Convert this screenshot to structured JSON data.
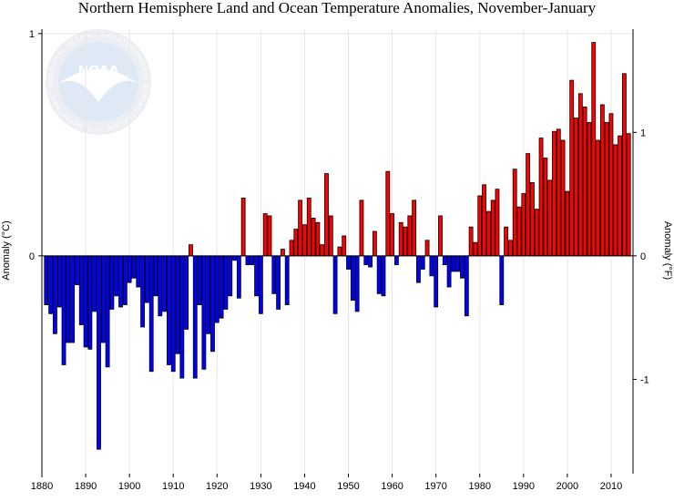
{
  "chart_data": {
    "type": "bar",
    "title": "Northern Hemisphere Land and Ocean Temperature Anomalies, November-January",
    "ylabel_left": "Anomaly (°C)",
    "ylabel_right": "Anomaly (°F)",
    "xlabel": "",
    "xlim": [
      1880,
      2015
    ],
    "ylim_c": [
      -0.98,
      1.02
    ],
    "ylim_f": [
      -1.764,
      1.836
    ],
    "x_ticks": [
      1880,
      1890,
      1900,
      1910,
      1920,
      1930,
      1940,
      1950,
      1960,
      1970,
      1980,
      1990,
      2000,
      2010
    ],
    "y_ticks_c": [
      1,
      0
    ],
    "y_ticks_f": [
      1,
      0,
      -1
    ],
    "grid": true,
    "positive_color": "#ff0000",
    "negative_color": "#0000ff",
    "x": [
      1881,
      1882,
      1883,
      1884,
      1885,
      1886,
      1887,
      1888,
      1889,
      1890,
      1891,
      1892,
      1893,
      1894,
      1895,
      1896,
      1897,
      1898,
      1899,
      1900,
      1901,
      1902,
      1903,
      1904,
      1905,
      1906,
      1907,
      1908,
      1909,
      1910,
      1911,
      1912,
      1913,
      1914,
      1915,
      1916,
      1917,
      1918,
      1919,
      1920,
      1921,
      1922,
      1923,
      1924,
      1925,
      1926,
      1927,
      1928,
      1929,
      1930,
      1931,
      1932,
      1933,
      1934,
      1935,
      1936,
      1937,
      1938,
      1939,
      1940,
      1941,
      1942,
      1943,
      1944,
      1945,
      1946,
      1947,
      1948,
      1949,
      1950,
      1951,
      1952,
      1953,
      1954,
      1955,
      1956,
      1957,
      1958,
      1959,
      1960,
      1961,
      1962,
      1963,
      1964,
      1965,
      1966,
      1967,
      1968,
      1969,
      1970,
      1971,
      1972,
      1973,
      1974,
      1975,
      1976,
      1977,
      1978,
      1979,
      1980,
      1981,
      1982,
      1983,
      1984,
      1985,
      1986,
      1987,
      1988,
      1989,
      1990,
      1991,
      1992,
      1993,
      1994,
      1995,
      1996,
      1997,
      1998,
      1999,
      2000,
      2001,
      2002,
      2003,
      2004,
      2005,
      2006,
      2007,
      2008,
      2009,
      2010,
      2011,
      2012,
      2013,
      2014
    ],
    "values": [
      -0.22,
      -0.26,
      -0.35,
      -0.23,
      -0.49,
      -0.39,
      -0.39,
      -0.13,
      -0.31,
      -0.41,
      -0.42,
      -0.25,
      -0.87,
      -0.39,
      -0.5,
      -0.24,
      -0.18,
      -0.23,
      -0.22,
      -0.12,
      -0.1,
      -0.14,
      -0.32,
      -0.21,
      -0.52,
      -0.18,
      -0.27,
      -0.25,
      -0.49,
      -0.52,
      -0.44,
      -0.55,
      -0.33,
      0.05,
      -0.55,
      -0.22,
      -0.51,
      -0.35,
      -0.43,
      -0.3,
      -0.28,
      -0.24,
      -0.18,
      -0.02,
      -0.19,
      0.26,
      -0.04,
      -0.04,
      -0.18,
      -0.26,
      0.19,
      0.18,
      -0.17,
      -0.24,
      0.03,
      -0.22,
      0.07,
      0.12,
      0.25,
      0.14,
      0.26,
      0.17,
      0.15,
      0.05,
      0.37,
      0.18,
      -0.26,
      0.04,
      0.09,
      -0.06,
      -0.2,
      -0.25,
      0.25,
      -0.04,
      -0.05,
      0.11,
      -0.17,
      -0.18,
      0.38,
      0.19,
      -0.04,
      0.15,
      0.13,
      0.18,
      0.25,
      -0.12,
      -0.06,
      0.07,
      -0.09,
      -0.23,
      0.18,
      -0.04,
      -0.14,
      -0.07,
      -0.07,
      -0.1,
      -0.27,
      0.13,
      0.06,
      0.27,
      0.32,
      0.2,
      0.25,
      0.3,
      -0.22,
      0.13,
      0.07,
      0.39,
      0.22,
      0.28,
      0.46,
      0.33,
      0.21,
      0.53,
      0.44,
      0.34,
      0.56,
      0.57,
      0.52,
      0.29,
      0.79,
      0.62,
      0.73,
      0.67,
      0.6,
      0.96,
      0.52,
      0.68,
      0.6,
      0.64,
      0.5,
      0.54,
      0.82,
      0.55
    ]
  },
  "logo": {
    "word": "NOAA",
    "ring_text": "NATIONAL OCEANIC AND ATMOSPHERIC ADMINISTRATION · U.S. DEPARTMENT OF COMMERCE"
  }
}
